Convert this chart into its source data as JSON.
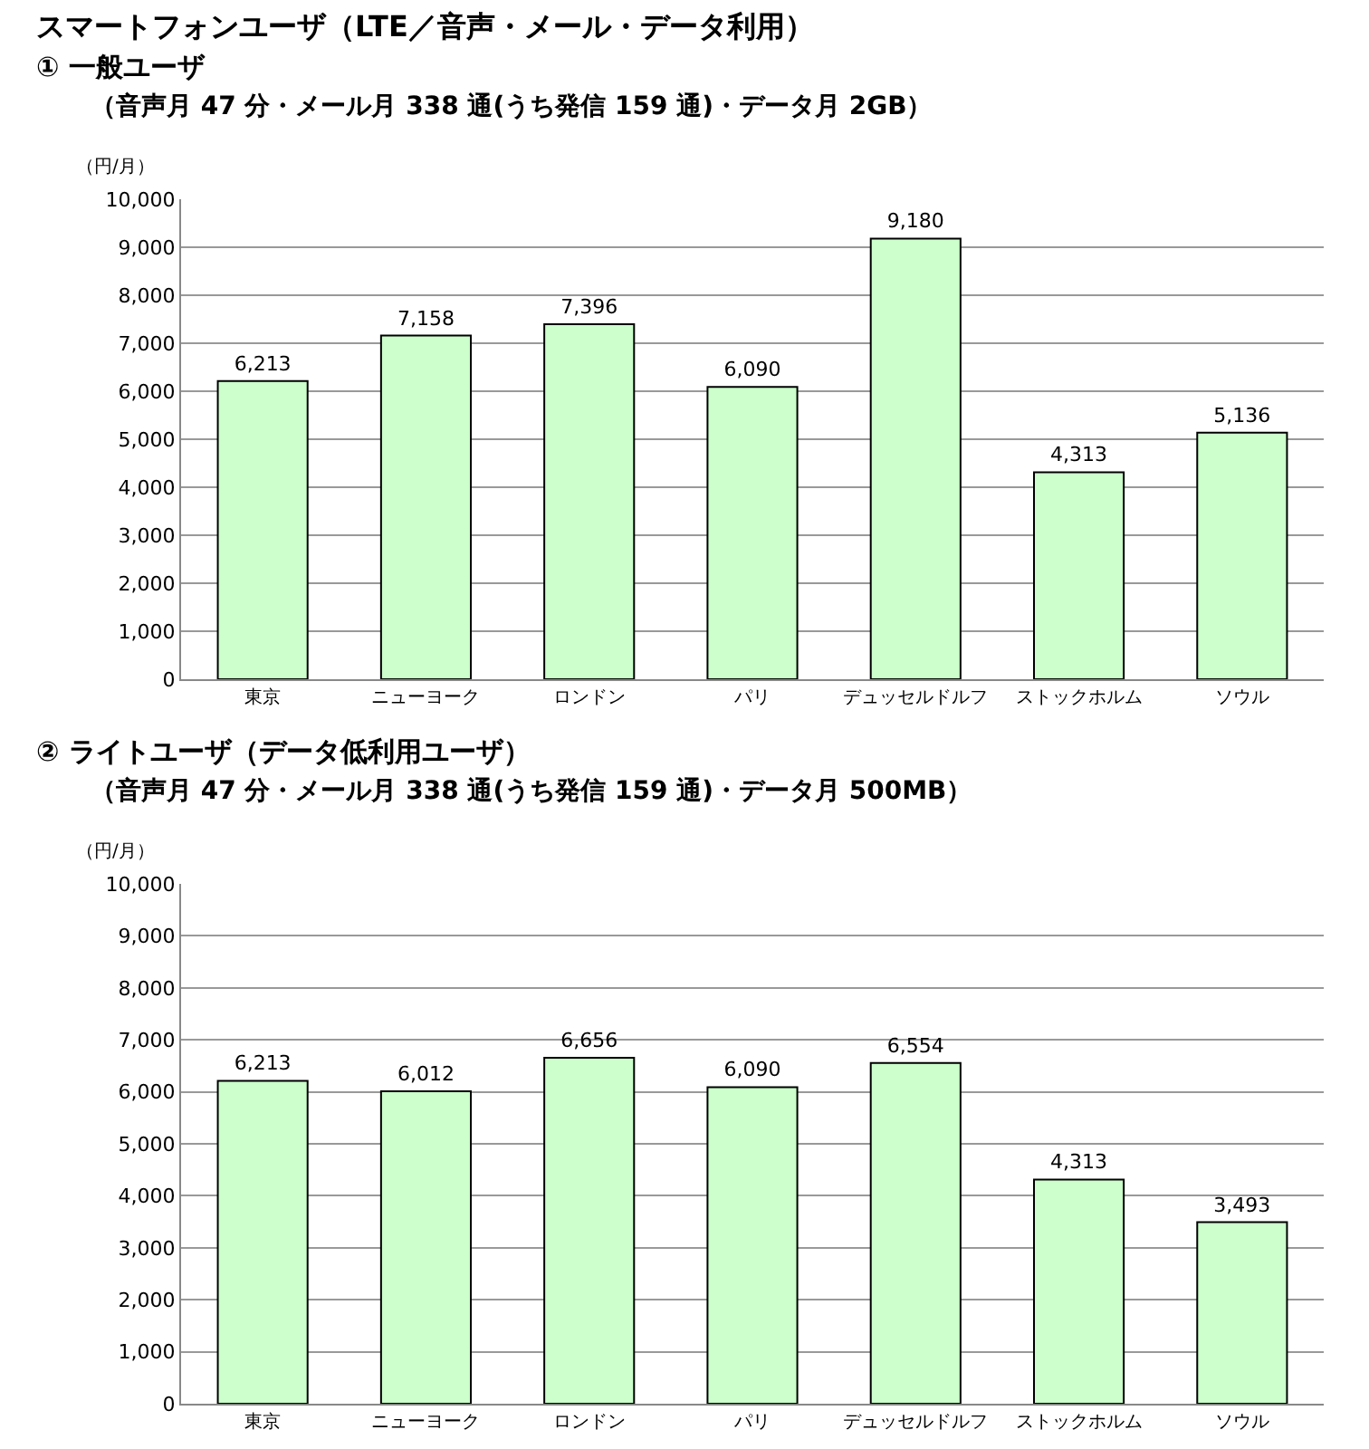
{
  "chart_data": [
    {
      "type": "bar",
      "title": "スマートフォンユーザ（LTE／音声・メール・データ利用）",
      "subtitle": "①  一般ユーザ",
      "annotations": [
        "（音声月 47 分・メール月 338 通(うち発信 159 通)・データ月 2GB）"
      ],
      "ylabel": "（円/月）",
      "categories": [
        "東京",
        "ニューヨーク",
        "ロンドン",
        "パリ",
        "デュッセルドルフ",
        "ストックホルム",
        "ソウル"
      ],
      "values": [
        6213,
        7158,
        7396,
        6090,
        9180,
        4313,
        5136
      ],
      "value_labels": [
        "6,213",
        "7,158",
        "7,396",
        "6,090",
        "9,180",
        "4,313",
        "5,136"
      ],
      "color": "#ccffcc",
      "ylim": [
        0,
        10000
      ],
      "yticks": [
        {
          "value": 0,
          "label": "0"
        },
        {
          "value": 1000,
          "label": "1,000"
        },
        {
          "value": 2000,
          "label": "2,000"
        },
        {
          "value": 3000,
          "label": "3,000"
        },
        {
          "value": 4000,
          "label": "4,000"
        },
        {
          "value": 5000,
          "label": "5,000"
        },
        {
          "value": 6000,
          "label": "6,000"
        },
        {
          "value": 7000,
          "label": "7,000"
        },
        {
          "value": 8000,
          "label": "8,000"
        },
        {
          "value": 9000,
          "label": "9,000"
        },
        {
          "value": 10000,
          "label": "10,000"
        }
      ],
      "grid": "y"
    },
    {
      "type": "bar",
      "title": "②  ライトユーザ（データ低利用ユーザ）",
      "subtitle": "（音声月 47 分・メール月 338 通(うち発信 159 通)・データ月 500MB）",
      "ylabel": "（円/月）",
      "categories": [
        "東京",
        "ニューヨーク",
        "ロンドン",
        "パリ",
        "デュッセルドルフ",
        "ストックホルム",
        "ソウル"
      ],
      "values": [
        6213,
        6012,
        6656,
        6090,
        6554,
        4313,
        3493
      ],
      "value_labels": [
        "6,213",
        "6,012",
        "6,656",
        "6,090",
        "6,554",
        "4,313",
        "3,493"
      ],
      "color": "#ccffcc",
      "ylim": [
        0,
        10000
      ],
      "yticks": [
        {
          "value": 0,
          "label": "0"
        },
        {
          "value": 1000,
          "label": "1,000"
        },
        {
          "value": 2000,
          "label": "2,000"
        },
        {
          "value": 3000,
          "label": "3,000"
        },
        {
          "value": 4000,
          "label": "4,000"
        },
        {
          "value": 5000,
          "label": "5,000"
        },
        {
          "value": 6000,
          "label": "6,000"
        },
        {
          "value": 7000,
          "label": "7,000"
        },
        {
          "value": 8000,
          "label": "8,000"
        },
        {
          "value": 9000,
          "label": "9,000"
        },
        {
          "value": 10000,
          "label": "10,000"
        }
      ],
      "grid": "y"
    }
  ]
}
